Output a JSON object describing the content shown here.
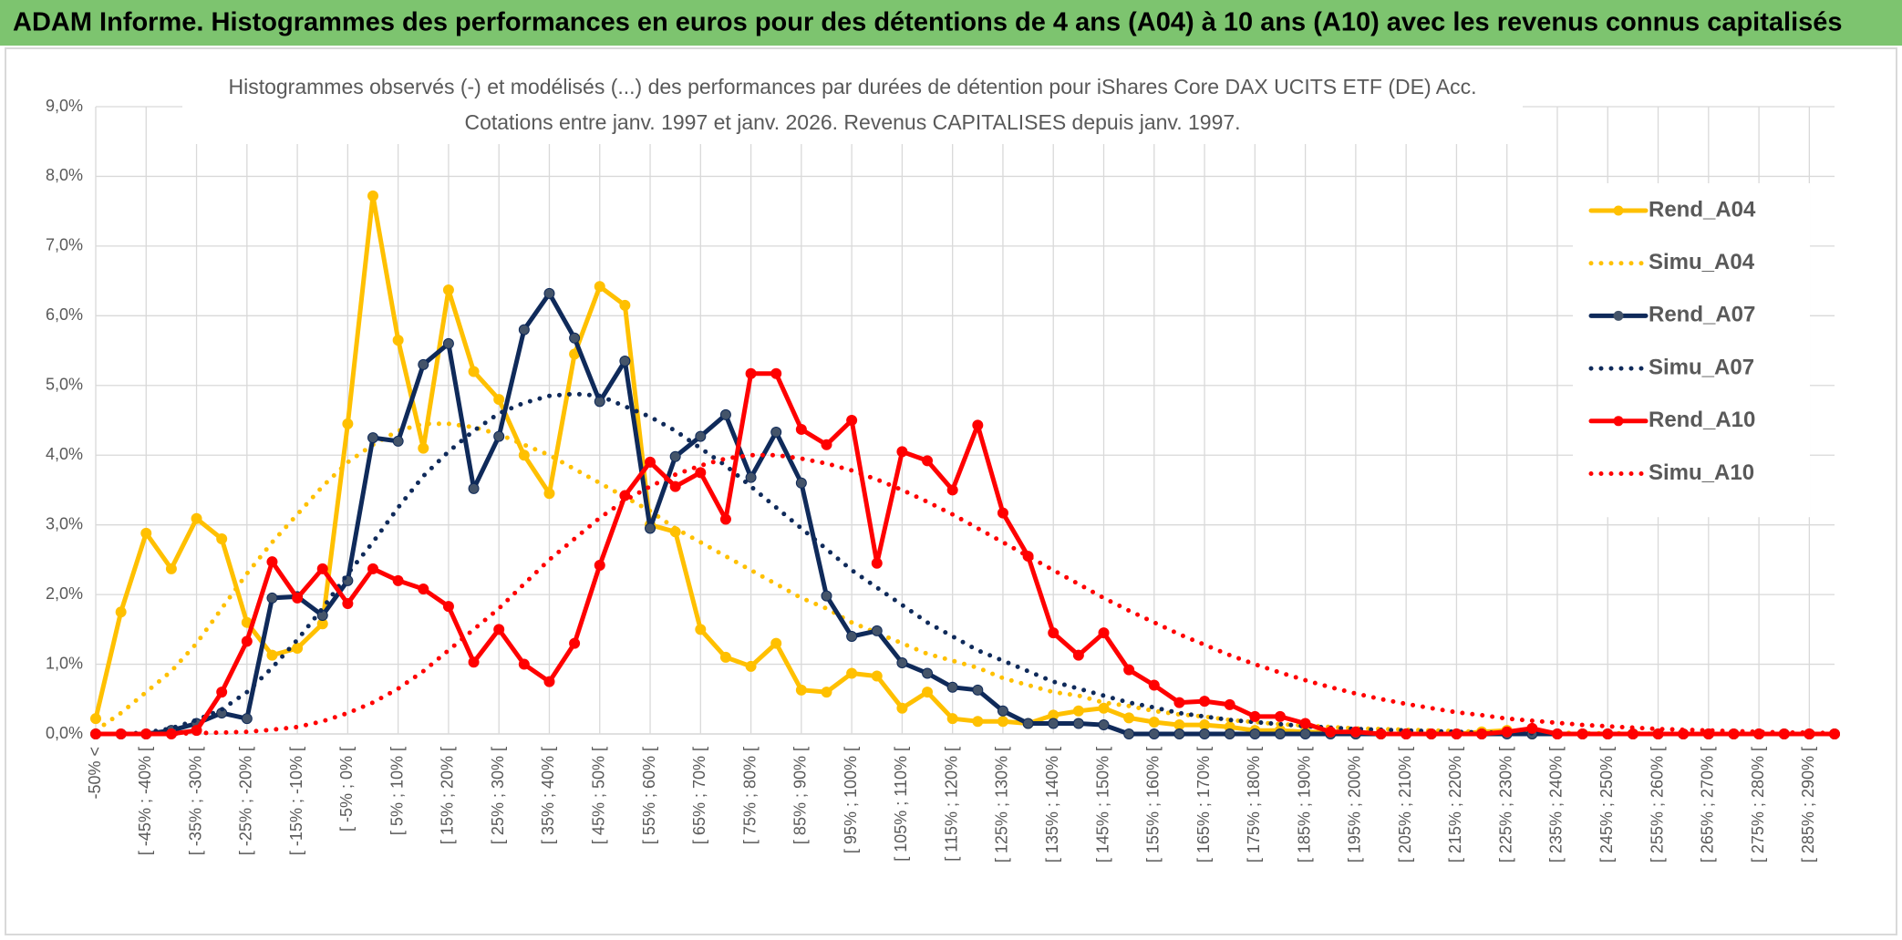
{
  "header": {
    "title": "ADAM Informe. Histogrammes des performances en euros pour des détentions de 4 ans (A04) à 10 ans (A10) avec les revenus connus capitalisés"
  },
  "chart_data": {
    "type": "line",
    "title": "Histogrammes observés (-) et modélisés (...) des performances par durées de détention pour iShares Core DAX UCITS ETF (DE) Acc.",
    "subtitle": "Cotations entre janv. 1997 et janv. 2026. Revenus CAPITALISES depuis janv. 1997.",
    "categories": [
      "-50% <",
      null,
      "[ -45% ; -40% [",
      null,
      "[ -35% ; -30% [",
      null,
      "[ -25% ; -20% [",
      null,
      "[ -15% ; -10% [",
      null,
      "[ -5% ; 0% [",
      null,
      "[ 5% ; 10% [",
      null,
      "[ 15% ; 20% [",
      null,
      "[ 25% ; 30% [",
      null,
      "[ 35% ; 40% [",
      null,
      "[ 45% ; 50% [",
      null,
      "[ 55% ; 60% [",
      null,
      "[ 65% ; 70% [",
      null,
      "[ 75% ; 80% [",
      null,
      "[ 85% ; 90% [",
      null,
      "[ 95% ; 100% [",
      null,
      "[ 105% ; 110% [",
      null,
      "[ 115% ; 120% [",
      null,
      "[ 125% ; 130% [",
      null,
      "[ 135% ; 140% [",
      null,
      "[ 145% ; 150% [",
      null,
      "[ 155% ; 160% [",
      null,
      "[ 165% ; 170% [",
      null,
      "[ 175% ; 180% [",
      null,
      "[ 185% ; 190% [",
      null,
      "[ 195% ; 200% [",
      null,
      "[ 205% ; 210% [",
      null,
      "[ 215% ; 220% [",
      null,
      "[ 225% ; 230% [",
      null,
      "[ 235% ; 240% [",
      null,
      "[ 245% ; 250% [",
      null,
      "[ 255% ; 260% [",
      null,
      "[ 265% ; 270% [",
      null,
      "[ 275% ; 280% [",
      null,
      "[ 285% ; 290% [",
      null
    ],
    "series": [
      {
        "name": "Rend_A04",
        "color": "#FFC000",
        "style": "solid",
        "markers": true,
        "values": [
          0.22,
          1.75,
          2.88,
          2.37,
          3.09,
          2.8,
          1.6,
          1.13,
          1.23,
          1.58,
          4.45,
          7.72,
          5.65,
          4.1,
          6.37,
          5.2,
          4.8,
          4.0,
          3.45,
          5.45,
          6.42,
          6.15,
          3.0,
          2.9,
          1.5,
          1.1,
          0.97,
          1.3,
          0.63,
          0.6,
          0.87,
          0.83,
          0.37,
          0.6,
          0.22,
          0.18,
          0.18,
          0.15,
          0.27,
          0.33,
          0.37,
          0.23,
          0.17,
          0.13,
          0.13,
          0.1,
          0.05,
          0.05,
          0.03,
          0.02,
          0,
          0,
          0,
          0,
          0,
          0.03,
          0.05,
          0,
          0,
          0,
          0,
          0,
          0,
          0,
          0,
          0,
          0,
          0,
          0,
          0
        ]
      },
      {
        "name": "Simu_A04",
        "color": "#FFC000",
        "style": "dotted",
        "markers": false,
        "values": [
          0.05,
          0.3,
          0.6,
          0.9,
          1.3,
          1.8,
          2.3,
          2.75,
          3.15,
          3.55,
          3.9,
          4.15,
          4.35,
          4.45,
          4.45,
          4.4,
          4.3,
          4.15,
          4.0,
          3.8,
          3.6,
          3.4,
          3.2,
          2.95,
          2.75,
          2.55,
          2.35,
          2.15,
          1.95,
          1.8,
          1.6,
          1.45,
          1.3,
          1.15,
          1.05,
          0.95,
          0.8,
          0.7,
          0.6,
          0.55,
          0.45,
          0.4,
          0.33,
          0.28,
          0.25,
          0.2,
          0.17,
          0.14,
          0.12,
          0.1,
          0.08,
          0.07,
          0.06,
          0.05,
          0.04,
          0.03,
          0.03,
          0.02,
          0.02,
          0.01,
          0.01,
          0.01,
          0,
          0,
          0,
          0,
          0,
          0,
          0,
          0
        ]
      },
      {
        "name": "Rend_A07",
        "color": "#0F2A5A",
        "style": "solid",
        "markers": true,
        "values": [
          0,
          0,
          0,
          0.05,
          0.15,
          0.3,
          0.22,
          1.95,
          1.97,
          1.7,
          2.2,
          4.25,
          4.2,
          5.3,
          5.6,
          3.52,
          4.27,
          5.8,
          6.32,
          5.68,
          4.77,
          5.35,
          2.95,
          3.98,
          4.27,
          4.58,
          3.68,
          4.33,
          3.6,
          1.98,
          1.4,
          1.48,
          1.02,
          0.87,
          0.67,
          0.63,
          0.33,
          0.15,
          0.15,
          0.15,
          0.13,
          0,
          0,
          0,
          0,
          0,
          0,
          0,
          0,
          0,
          0,
          0,
          0,
          0,
          0,
          0,
          0,
          0,
          0,
          0,
          0,
          0,
          0,
          0,
          0,
          0,
          0,
          0,
          0,
          0
        ]
      },
      {
        "name": "Simu_A07",
        "color": "#0F2A5A",
        "style": "dotted",
        "markers": false,
        "values": [
          0,
          0,
          0.02,
          0.08,
          0.2,
          0.35,
          0.6,
          0.95,
          1.35,
          1.8,
          2.3,
          2.75,
          3.25,
          3.7,
          4.05,
          4.35,
          4.6,
          4.75,
          4.85,
          4.88,
          4.85,
          4.7,
          4.55,
          4.35,
          4.1,
          3.85,
          3.55,
          3.25,
          2.95,
          2.65,
          2.35,
          2.1,
          1.85,
          1.6,
          1.4,
          1.2,
          1.05,
          0.9,
          0.75,
          0.65,
          0.55,
          0.45,
          0.38,
          0.3,
          0.25,
          0.2,
          0.17,
          0.14,
          0.11,
          0.09,
          0.07,
          0.06,
          0.05,
          0.04,
          0.03,
          0.02,
          0.02,
          0.01,
          0,
          0,
          0,
          0,
          0,
          0,
          0,
          0,
          0,
          0,
          0,
          0
        ]
      },
      {
        "name": "Rend_A10",
        "color": "#FF0000",
        "style": "solid",
        "markers": true,
        "values": [
          0,
          0,
          0,
          0,
          0.05,
          0.6,
          1.33,
          2.47,
          1.95,
          2.37,
          1.87,
          2.37,
          2.2,
          2.08,
          1.83,
          1.03,
          1.5,
          1.0,
          0.75,
          1.3,
          2.42,
          3.42,
          3.9,
          3.55,
          3.75,
          3.08,
          5.17,
          5.17,
          4.37,
          4.15,
          4.5,
          2.45,
          4.05,
          3.92,
          3.5,
          4.43,
          3.17,
          2.55,
          1.45,
          1.13,
          1.45,
          0.92,
          0.7,
          0.45,
          0.47,
          0.42,
          0.25,
          0.25,
          0.15,
          0.03,
          0.03,
          0,
          0,
          0,
          0,
          0,
          0.03,
          0.08,
          0,
          0,
          0,
          0,
          0,
          0,
          0,
          0,
          0,
          0,
          0,
          0
        ]
      },
      {
        "name": "Simu_A10",
        "color": "#FF0000",
        "style": "dotted",
        "markers": false,
        "values": [
          0,
          0,
          0,
          0,
          0.01,
          0.02,
          0.03,
          0.06,
          0.1,
          0.18,
          0.3,
          0.45,
          0.65,
          0.9,
          1.2,
          1.5,
          1.8,
          2.15,
          2.5,
          2.8,
          3.1,
          3.35,
          3.55,
          3.72,
          3.85,
          3.95,
          4.0,
          4.0,
          3.95,
          3.88,
          3.78,
          3.65,
          3.5,
          3.33,
          3.15,
          2.95,
          2.75,
          2.55,
          2.35,
          2.15,
          1.95,
          1.77,
          1.6,
          1.43,
          1.28,
          1.13,
          1.0,
          0.88,
          0.77,
          0.67,
          0.58,
          0.5,
          0.43,
          0.37,
          0.31,
          0.27,
          0.22,
          0.19,
          0.16,
          0.13,
          0.11,
          0.09,
          0.07,
          0.06,
          0.05,
          0.04,
          0.03,
          0.02,
          0.02,
          0.01
        ]
      }
    ],
    "ylim": [
      0,
      9
    ],
    "yticks": [
      {
        "value": 0,
        "label": "0,0%"
      },
      {
        "value": 1,
        "label": "1,0%"
      },
      {
        "value": 2,
        "label": "2,0%"
      },
      {
        "value": 3,
        "label": "3,0%"
      },
      {
        "value": 4,
        "label": "4,0%"
      },
      {
        "value": 5,
        "label": "5,0%"
      },
      {
        "value": 6,
        "label": "6,0%"
      },
      {
        "value": 7,
        "label": "7,0%"
      },
      {
        "value": 8,
        "label": "8,0%"
      },
      {
        "value": 9,
        "label": "9,0%"
      }
    ],
    "grid": true,
    "legend": "right"
  }
}
